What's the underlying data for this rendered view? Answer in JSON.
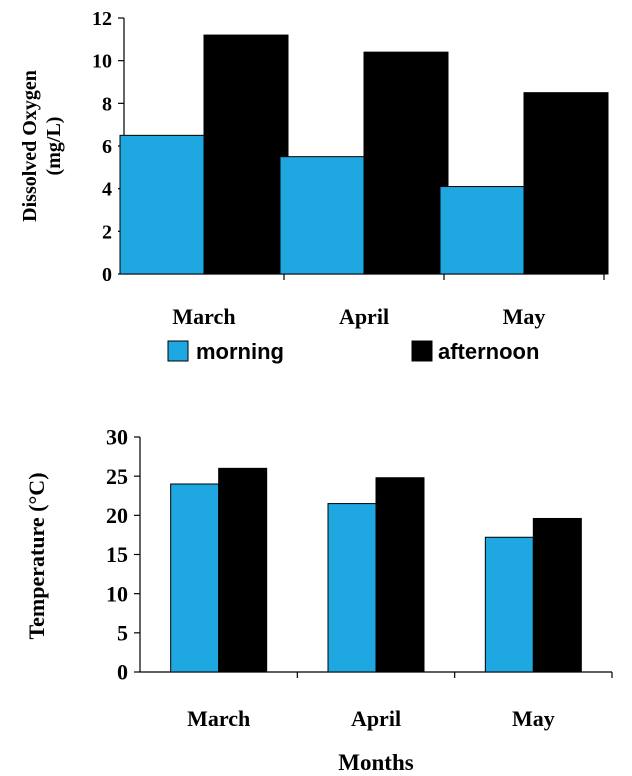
{
  "chart_data": [
    {
      "type": "bar",
      "categories": [
        "March",
        "April",
        "May"
      ],
      "series": [
        {
          "name": "morning",
          "values": [
            6.5,
            5.5,
            4.1
          ]
        },
        {
          "name": "afternoon",
          "values": [
            11.2,
            10.4,
            8.5
          ]
        }
      ],
      "ylabel": "Dissolved Oxygen (mg/L)",
      "ylabel_lines": [
        "Dissolved Oxygen",
        "(mg/L)"
      ],
      "xlabel": "",
      "ylim": [
        0,
        12
      ],
      "yticks": [
        0,
        2,
        4,
        6,
        8,
        10,
        12
      ],
      "grid": false,
      "legend": "bottom"
    },
    {
      "type": "bar",
      "categories": [
        "March",
        "April",
        "May"
      ],
      "series": [
        {
          "values": [
            24,
            21.5,
            17.2
          ]
        },
        {
          "values": [
            26,
            24.8,
            19.6
          ]
        }
      ],
      "ylabel": "Temperature (°C)",
      "xlabel": "Months",
      "ylim": [
        0,
        30
      ],
      "yticks": [
        0,
        5,
        10,
        15,
        20,
        25,
        30
      ],
      "grid": false,
      "legend": "none"
    }
  ],
  "colors": {
    "morning": "#1fa7e1",
    "afternoon": "#000000",
    "bar_stroke": "#000000"
  }
}
